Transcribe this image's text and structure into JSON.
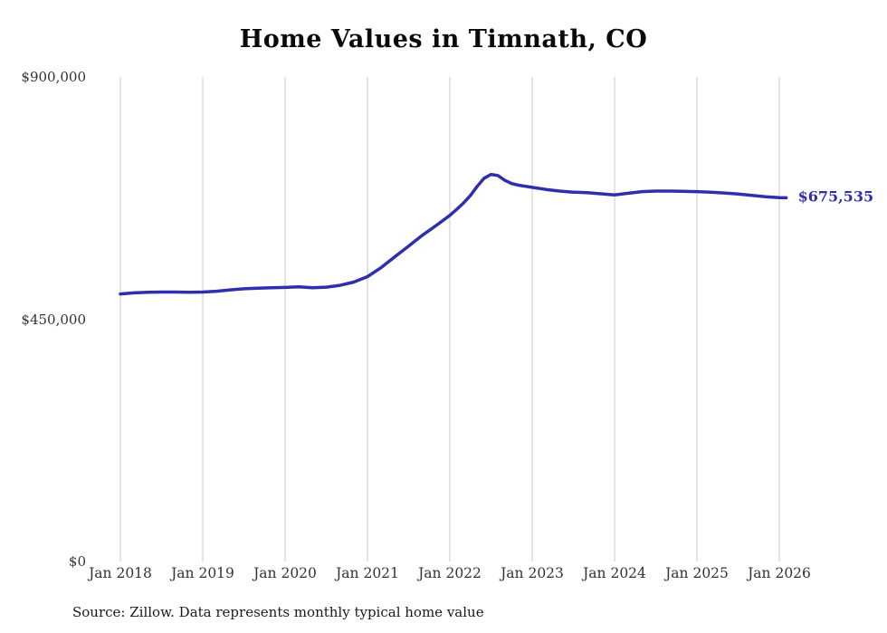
{
  "source_note": "Source: Zillow. Data represents monthly typical home value",
  "colors": {
    "line": "#2f2fad",
    "label": "#2f2fad",
    "grid": "#c9c9c9",
    "axis_text": "#333333"
  },
  "chart_data": {
    "type": "line",
    "title": "Home Values in Timnath, CO",
    "xlabel": "",
    "ylabel": "",
    "ylim": [
      0,
      900000
    ],
    "grid": "vertical",
    "legend": "none",
    "end_label": "$675,535",
    "end_value": 675535,
    "y_ticks": [
      {
        "value": 0,
        "label": "$0"
      },
      {
        "value": 450000,
        "label": "$450,000"
      },
      {
        "value": 900000,
        "label": "$900,000"
      }
    ],
    "x_ticks": [
      "Jan 2018",
      "Jan 2019",
      "Jan 2020",
      "Jan 2021",
      "Jan 2022",
      "Jan 2023",
      "Jan 2024",
      "Jan 2025",
      "Jan 2026"
    ],
    "series": [
      {
        "name": "Monthly typical home value",
        "points": [
          {
            "date": "2018-01",
            "value": 497000
          },
          {
            "date": "2018-03",
            "value": 499000
          },
          {
            "date": "2018-05",
            "value": 500000
          },
          {
            "date": "2018-07",
            "value": 500500
          },
          {
            "date": "2018-09",
            "value": 500500
          },
          {
            "date": "2018-11",
            "value": 500000
          },
          {
            "date": "2019-01",
            "value": 500500
          },
          {
            "date": "2019-03",
            "value": 502000
          },
          {
            "date": "2019-05",
            "value": 504500
          },
          {
            "date": "2019-07",
            "value": 506500
          },
          {
            "date": "2019-09",
            "value": 507500
          },
          {
            "date": "2019-11",
            "value": 508500
          },
          {
            "date": "2020-01",
            "value": 509000
          },
          {
            "date": "2020-03",
            "value": 510000
          },
          {
            "date": "2020-05",
            "value": 508500
          },
          {
            "date": "2020-07",
            "value": 509500
          },
          {
            "date": "2020-09",
            "value": 513000
          },
          {
            "date": "2020-11",
            "value": 519000
          },
          {
            "date": "2021-01",
            "value": 529000
          },
          {
            "date": "2021-03",
            "value": 546000
          },
          {
            "date": "2021-05",
            "value": 566000
          },
          {
            "date": "2021-07",
            "value": 586000
          },
          {
            "date": "2021-09",
            "value": 606000
          },
          {
            "date": "2021-11",
            "value": 624000
          },
          {
            "date": "2022-01",
            "value": 643000
          },
          {
            "date": "2022-02",
            "value": 654000
          },
          {
            "date": "2022-03",
            "value": 666000
          },
          {
            "date": "2022-04",
            "value": 680000
          },
          {
            "date": "2022-05",
            "value": 697000
          },
          {
            "date": "2022-06",
            "value": 712000
          },
          {
            "date": "2022-07",
            "value": 719000
          },
          {
            "date": "2022-08",
            "value": 717000
          },
          {
            "date": "2022-09",
            "value": 708000
          },
          {
            "date": "2022-10",
            "value": 702000
          },
          {
            "date": "2022-11",
            "value": 699000
          },
          {
            "date": "2022-12",
            "value": 697000
          },
          {
            "date": "2023-01",
            "value": 695000
          },
          {
            "date": "2023-03",
            "value": 691000
          },
          {
            "date": "2023-05",
            "value": 688000
          },
          {
            "date": "2023-07",
            "value": 686000
          },
          {
            "date": "2023-09",
            "value": 685000
          },
          {
            "date": "2023-11",
            "value": 683000
          },
          {
            "date": "2024-01",
            "value": 681000
          },
          {
            "date": "2024-03",
            "value": 684000
          },
          {
            "date": "2024-05",
            "value": 687000
          },
          {
            "date": "2024-07",
            "value": 688000
          },
          {
            "date": "2024-09",
            "value": 688000
          },
          {
            "date": "2024-11",
            "value": 687500
          },
          {
            "date": "2025-01",
            "value": 687000
          },
          {
            "date": "2025-03",
            "value": 686000
          },
          {
            "date": "2025-05",
            "value": 684500
          },
          {
            "date": "2025-07",
            "value": 682500
          },
          {
            "date": "2025-09",
            "value": 680000
          },
          {
            "date": "2025-11",
            "value": 677500
          },
          {
            "date": "2026-01",
            "value": 676000
          },
          {
            "date": "2026-02",
            "value": 675535
          }
        ]
      }
    ]
  }
}
